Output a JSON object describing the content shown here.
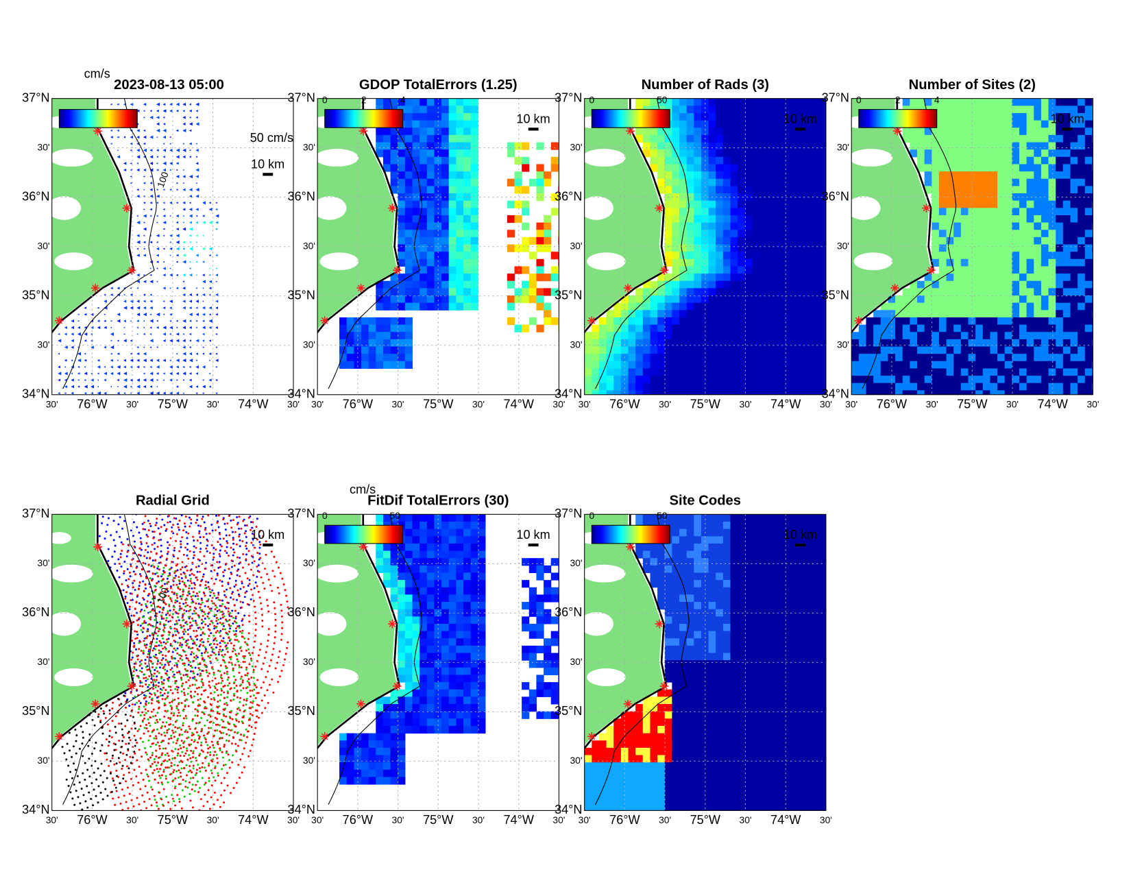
{
  "lat_labels": [
    "37°N",
    "30'",
    "36°N",
    "30'",
    "35°N",
    "30'",
    "34°N"
  ],
  "lon_labels": [
    "30'",
    "76°W",
    "30'",
    "75°W",
    "30'",
    "74°W",
    "30'"
  ],
  "panels": [
    {
      "title": "2023-08-13 05:00",
      "colorbar_unit": "cm/s",
      "arrow_label": "50 cm/s",
      "scale_label": "10 km",
      "contour_label": "100"
    },
    {
      "title": "GDOP TotalErrors (1.25)",
      "colorbar_ticks": [
        "0",
        "2",
        "4"
      ],
      "scale_label": "10 km"
    },
    {
      "title": "Number of Rads (3)",
      "colorbar_ticks": [
        "0",
        "50"
      ],
      "scale_label": "10 km"
    },
    {
      "title": "Number of Sites (2)",
      "colorbar_ticks": [
        "0",
        "2",
        "4"
      ],
      "scale_label": "10 km"
    },
    {
      "title": "Radial Grid",
      "scale_label": "10 km",
      "contour_label": "100"
    },
    {
      "title": "FitDif TotalErrors (30)",
      "colorbar_unit": "cm/s",
      "colorbar_ticks": [
        "0",
        "50"
      ],
      "scale_label": "10 km"
    },
    {
      "title": "Site Codes",
      "colorbar_ticks": [
        "0",
        "50"
      ],
      "scale_label": "10 km"
    }
  ]
}
